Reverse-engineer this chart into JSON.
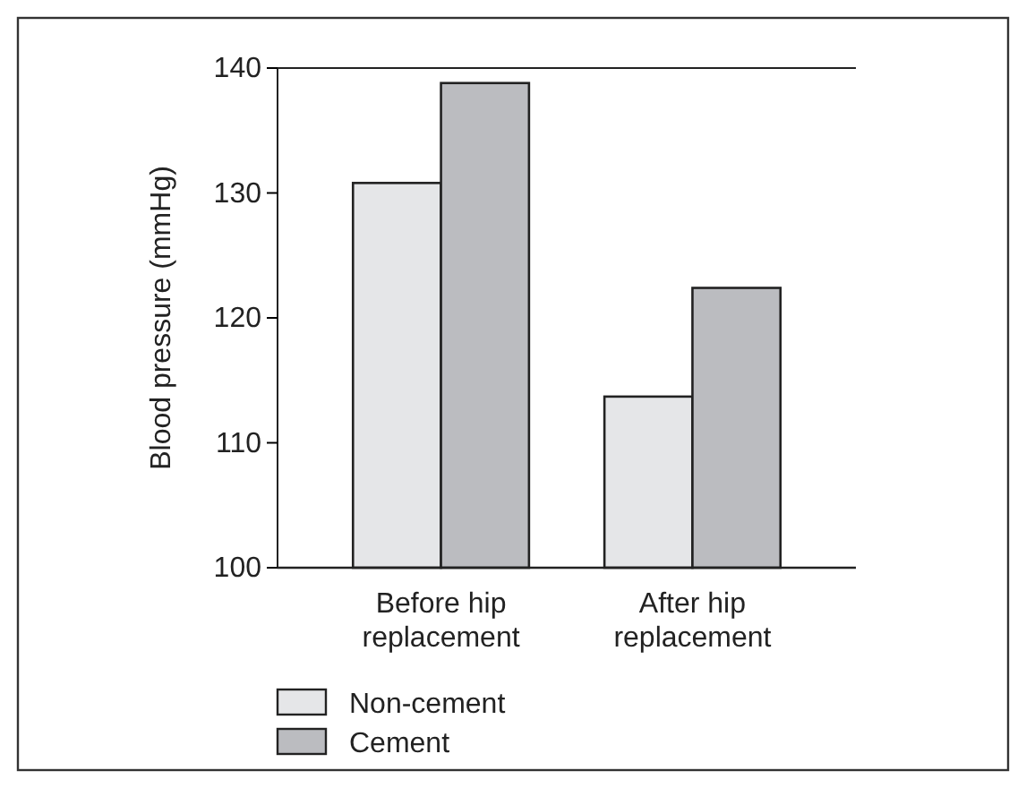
{
  "chart_data": {
    "type": "bar",
    "ylabel": "Blood pressure (mmHg)",
    "categories": [
      "Before hip replacement",
      "After hip replacement"
    ],
    "series": [
      {
        "name": "Non-cement",
        "color": "#e5e6e8",
        "values": [
          130.8,
          113.7
        ]
      },
      {
        "name": "Cement",
        "color": "#bbbcc0",
        "values": [
          138.8,
          122.4
        ]
      }
    ],
    "ylim": [
      100,
      140
    ],
    "yticks": [
      100,
      110,
      120,
      130,
      140
    ],
    "grid": false,
    "legend": "bottom left"
  }
}
